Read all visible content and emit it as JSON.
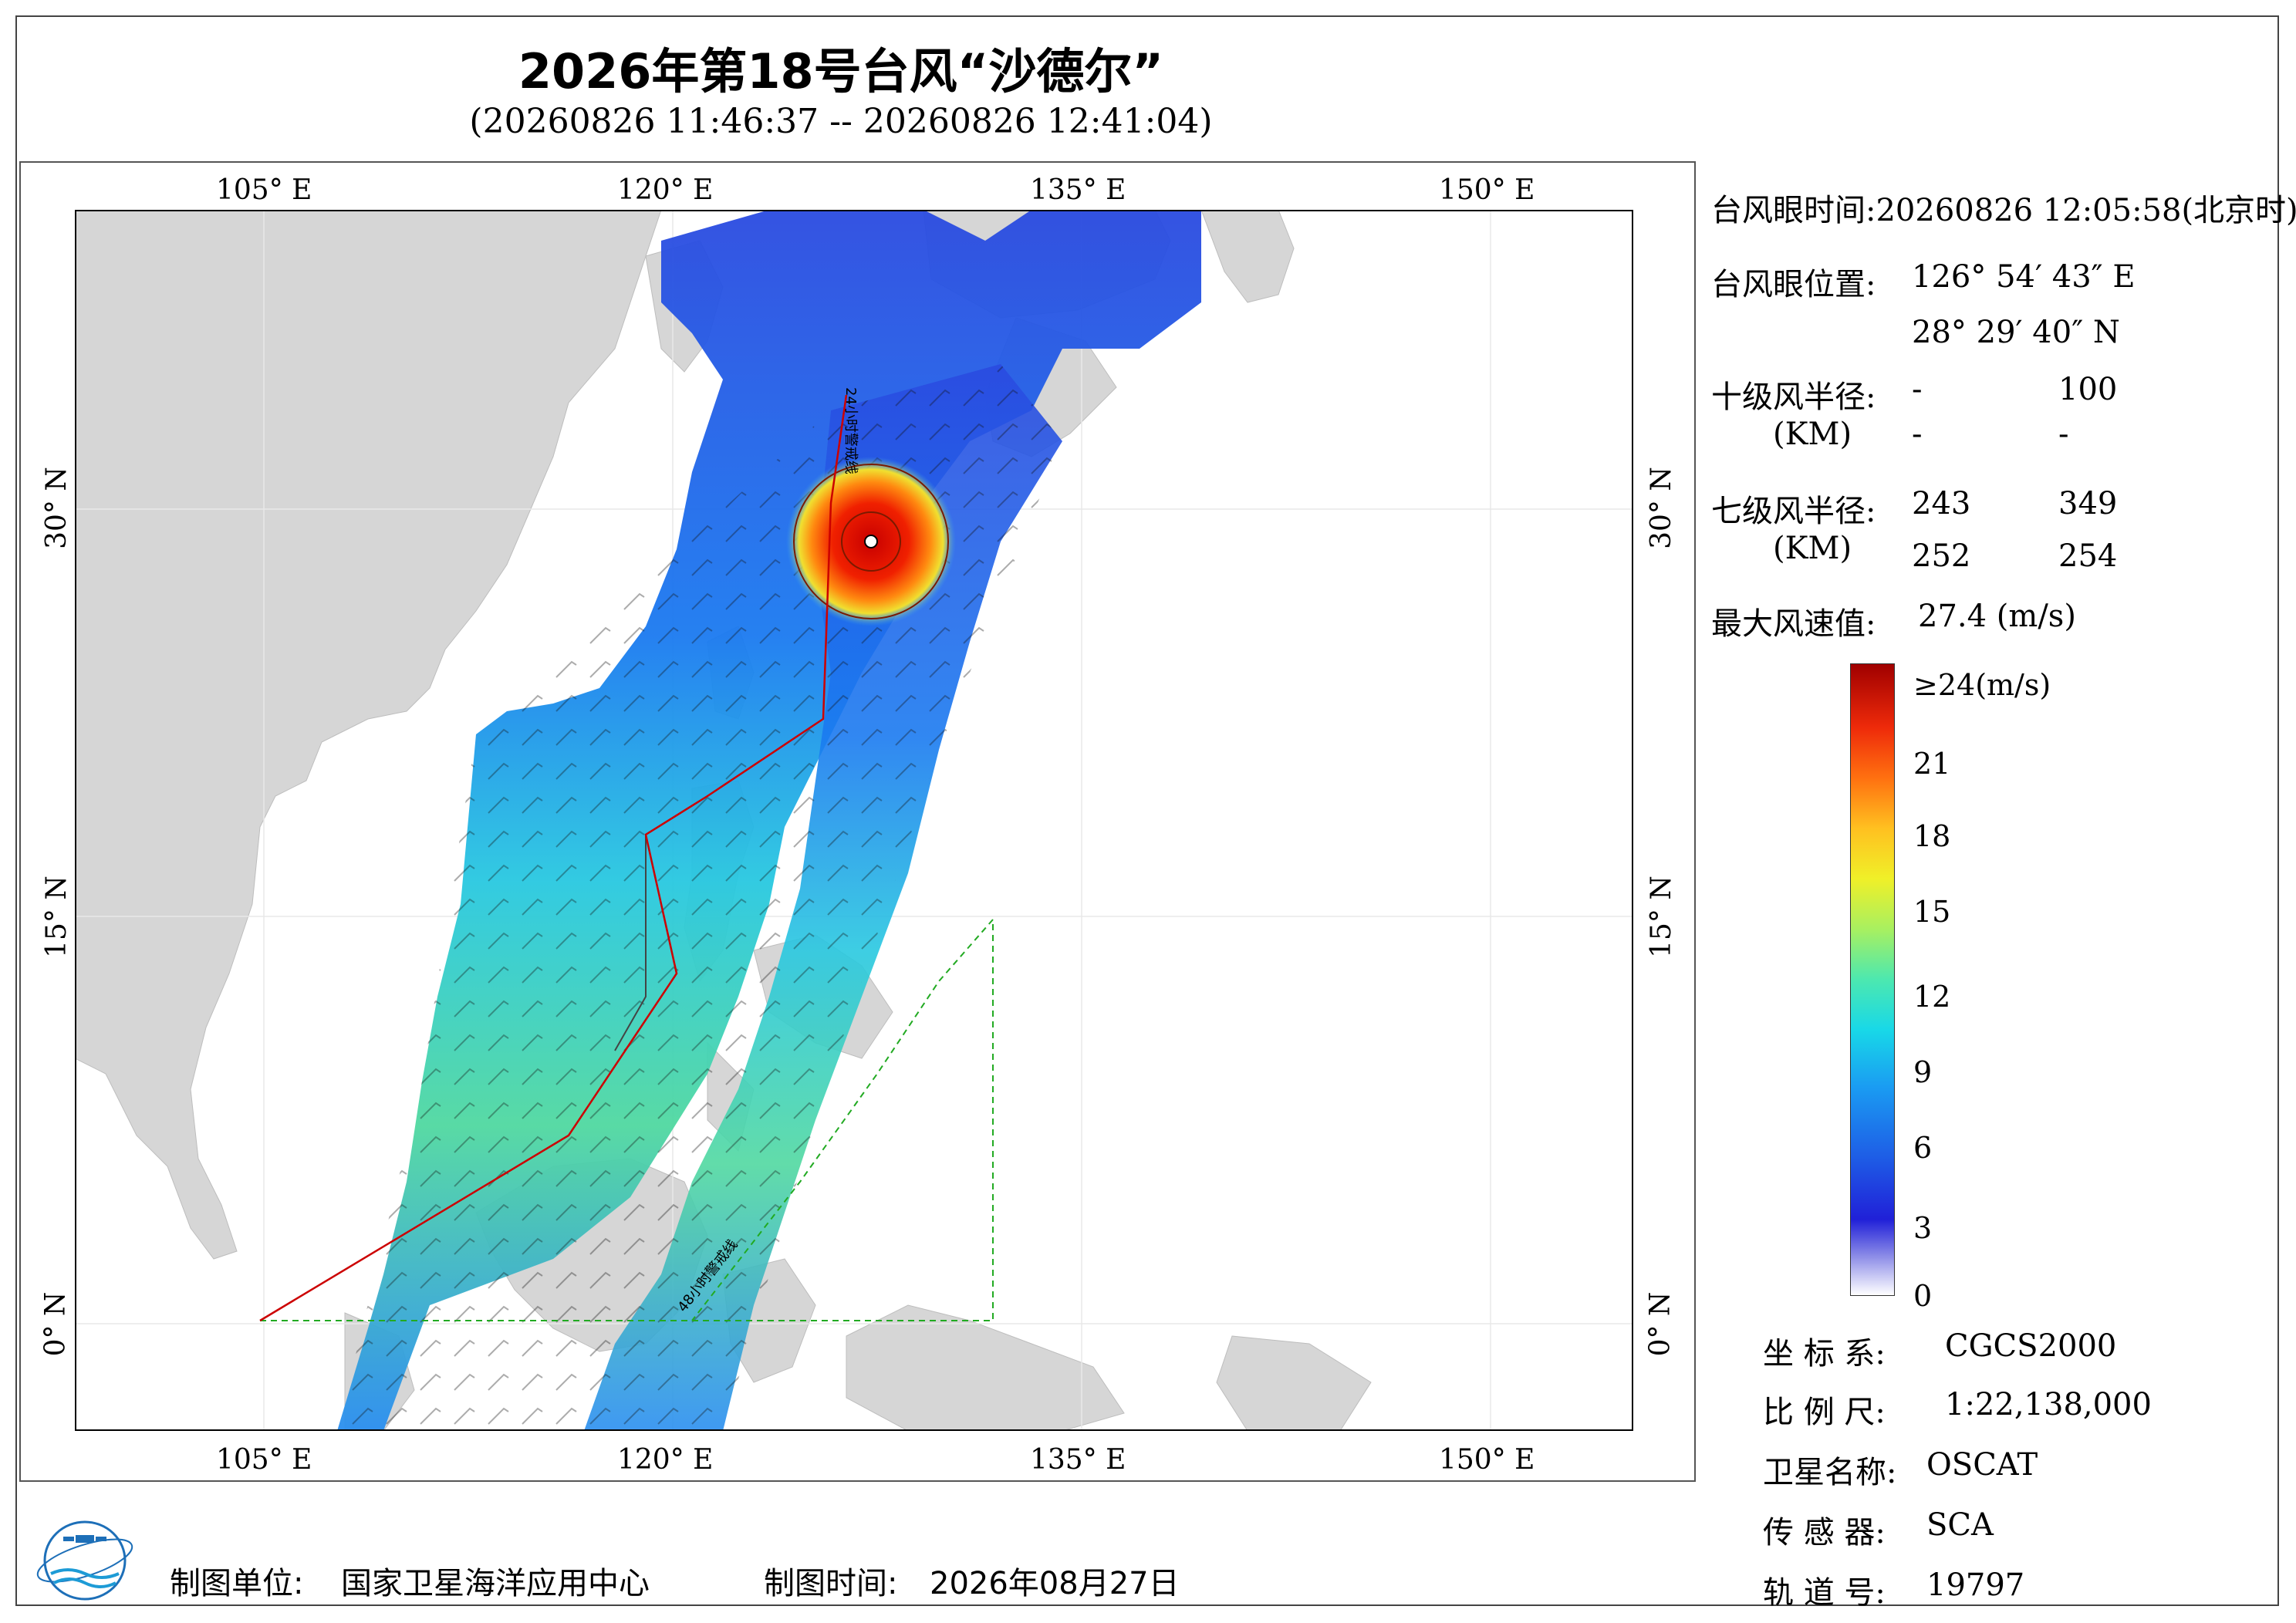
{
  "header": {
    "title": "2026年第18号台风“沙德尔”",
    "subtitle": "(20260826 11:46:37 -- 20260826 12:41:04)"
  },
  "map": {
    "lon_ticks_top": [
      "105° E",
      "120° E",
      "135° E",
      "150° E"
    ],
    "lon_ticks_bottom": [
      "105° E",
      "120° E",
      "135° E",
      "150° E"
    ],
    "lat_ticks_left": [
      "30° N",
      "15° N",
      "0° N"
    ],
    "lat_ticks_right": [
      "30° N",
      "15° N",
      "0° N"
    ],
    "warning_line_48h": "48小时警戒线",
    "warning_line_24h": "24小时警戒线",
    "colors": {
      "land": "#d6d6d6",
      "ocean": "#ffffff",
      "warning_48h": "#22aa22",
      "warning_24h": "#cc0000",
      "nation_line": "#444444"
    }
  },
  "info": {
    "eye_time_label": "台风眼时间:",
    "eye_time_value": "20260826 12:05:58(北京时)",
    "eye_pos_label": "台风眼位置:",
    "eye_lon": "126° 54′ 43″ E",
    "eye_lat": "28° 29′ 40″ N",
    "r10_label": "十级风半径:",
    "r10_unit": "(KM)",
    "r10_values": [
      "-",
      "100",
      "-",
      "-"
    ],
    "r7_label": "七级风半径:",
    "r7_unit": "(KM)",
    "r7_values": [
      "243",
      "349",
      "252",
      "254"
    ],
    "max_wind_label": "最大风速值:",
    "max_wind_value": "27.4  (m/s)"
  },
  "legend": {
    "labels": [
      "≥24(m/s)",
      "21",
      "18",
      "15",
      "12",
      "9",
      "6",
      "3",
      "0"
    ]
  },
  "meta": {
    "crs_label": "坐 标 系:",
    "crs_value": "CGCS2000",
    "scale_label": "比 例 尺:",
    "scale_value": "1:22,138,000",
    "satellite_label": "卫星名称:",
    "satellite_value": "OSCAT",
    "sensor_label": "传 感 器:",
    "sensor_value": "SCA",
    "orbit_label": "轨 道 号:",
    "orbit_value": "19797"
  },
  "footer": {
    "producer_label": "制图单位:",
    "producer_value": "国家卫星海洋应用中心",
    "date_label": "制图时间:",
    "date_value": "2026年08月27日"
  }
}
